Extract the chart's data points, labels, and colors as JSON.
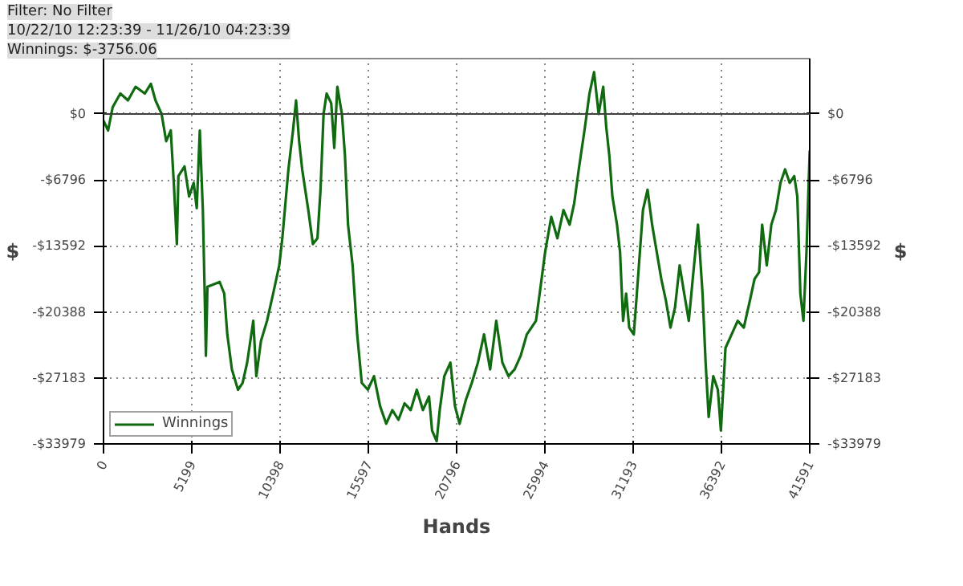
{
  "chart_data": {
    "type": "line",
    "xlabel": "Hands",
    "ylabel": "$",
    "y2label": "$",
    "annotations": [
      "Filter: No Filter",
      "10/22/10 12:23:39 - 11/26/10 04:23:39",
      "Winnings: $-3756.06"
    ],
    "xlim": [
      0,
      41591
    ],
    "xticks": [
      0,
      5199,
      10398,
      15597,
      20796,
      25994,
      31193,
      36392,
      41591
    ],
    "ylim": [
      -33979,
      5700
    ],
    "yticks": [
      {
        "value": 0,
        "label": "$0"
      },
      {
        "value": -6796,
        "label": "-$6796"
      },
      {
        "value": -13592,
        "label": "-$13592"
      },
      {
        "value": -20388,
        "label": "-$20388"
      },
      {
        "value": -27183,
        "label": "-$27183"
      },
      {
        "value": -33979,
        "label": "-$33979"
      }
    ],
    "y2lim": [
      -33979,
      5700
    ],
    "y2ticks": [
      {
        "value": 0,
        "label": "$0"
      },
      {
        "value": -6796,
        "label": "-$6796"
      },
      {
        "value": -13592,
        "label": "-$13592"
      },
      {
        "value": -20388,
        "label": "-$20388"
      },
      {
        "value": -27183,
        "label": "-$27183"
      },
      {
        "value": -33979,
        "label": "-$33979"
      }
    ],
    "grid": true,
    "legend": "bottom left",
    "marker": "none",
    "line_style": "solid",
    "ref_lines": [
      {
        "axis": "y",
        "value": 0,
        "label": null,
        "color": "#404040"
      }
    ],
    "x": [
      0,
      270,
      540,
      990,
      1440,
      1890,
      2430,
      2790,
      3060,
      3420,
      3690,
      3960,
      4140,
      4320,
      4410,
      4770,
      5040,
      5310,
      5490,
      5670,
      5850,
      5940,
      6030,
      6120,
      6840,
      7110,
      7290,
      7560,
      7920,
      8190,
      8460,
      8820,
      9000,
      9270,
      9630,
      9990,
      10350,
      10530,
      10890,
      11160,
      11340,
      11520,
      11700,
      12060,
      12330,
      12600,
      12780,
      12960,
      13140,
      13410,
      13590,
      13770,
      14040,
      14220,
      14400,
      14670,
      14940,
      15210,
      15570,
      15930,
      16290,
      16650,
      17010,
      17370,
      17730,
      18090,
      18450,
      18810,
      19170,
      19350,
      19620,
      19800,
      20070,
      20430,
      20700,
      20970,
      21330,
      21690,
      22050,
      22410,
      22770,
      23130,
      23490,
      23850,
      24210,
      24570,
      24930,
      25470,
      25740,
      26010,
      26370,
      26730,
      27090,
      27450,
      27720,
      27990,
      28350,
      28620,
      28890,
      29160,
      29430,
      29610,
      29790,
      29970,
      30240,
      30420,
      30600,
      30780,
      30960,
      31230,
      31410,
      31770,
      32040,
      32310,
      32580,
      32850,
      33120,
      33390,
      33660,
      33930,
      34200,
      34470,
      34740,
      35010,
      35280,
      35460,
      35640,
      35910,
      36180,
      36360,
      36630,
      36990,
      37350,
      37710,
      38070,
      38340,
      38610,
      38790,
      39060,
      39330,
      39600,
      39870,
      40140,
      40410,
      40680,
      40860,
      41040,
      41220,
      41400,
      41591
    ],
    "series": [
      {
        "name": "Winnings",
        "color": "#106a10",
        "values": [
          -700,
          -1700,
          700,
          2100,
          1400,
          2800,
          2100,
          3100,
          1400,
          0,
          -2800,
          -1700,
          -7100,
          -13400,
          -6400,
          -5400,
          -8500,
          -7100,
          -9700,
          -1700,
          -9900,
          -17000,
          -24900,
          -17800,
          -17300,
          -18500,
          -22700,
          -26300,
          -28400,
          -27700,
          -25600,
          -21300,
          -27000,
          -23400,
          -21300,
          -18500,
          -15600,
          -12800,
          -5700,
          -1700,
          1400,
          -2800,
          -5700,
          -9900,
          -13400,
          -12800,
          -7800,
          0,
          2100,
          1100,
          -3500,
          2800,
          0,
          -4300,
          -11400,
          -15600,
          -22700,
          -27700,
          -28400,
          -27000,
          -30100,
          -31900,
          -30500,
          -31500,
          -29800,
          -30500,
          -28400,
          -30500,
          -29100,
          -32600,
          -33700,
          -30500,
          -27000,
          -25600,
          -30100,
          -31900,
          -29500,
          -27700,
          -25600,
          -22700,
          -26300,
          -21300,
          -25600,
          -27000,
          -26300,
          -24900,
          -22700,
          -21300,
          -17800,
          -14200,
          -10600,
          -12800,
          -9900,
          -11400,
          -9200,
          -5700,
          -1400,
          2100,
          4300,
          0,
          2800,
          -1400,
          -4300,
          -8500,
          -11400,
          -14200,
          -21300,
          -18500,
          -22000,
          -22700,
          -18500,
          -9900,
          -7800,
          -11400,
          -14200,
          -17000,
          -19200,
          -22000,
          -19900,
          -15600,
          -18500,
          -21300,
          -16300,
          -11400,
          -18500,
          -25600,
          -31200,
          -27000,
          -28400,
          -32600,
          -24100,
          -22700,
          -21300,
          -22000,
          -19200,
          -17000,
          -16300,
          -11400,
          -15600,
          -11400,
          -9900,
          -7100,
          -5700,
          -7100,
          -6400,
          -8500,
          -18500,
          -21300,
          -14200,
          -3760
        ]
      }
    ]
  }
}
